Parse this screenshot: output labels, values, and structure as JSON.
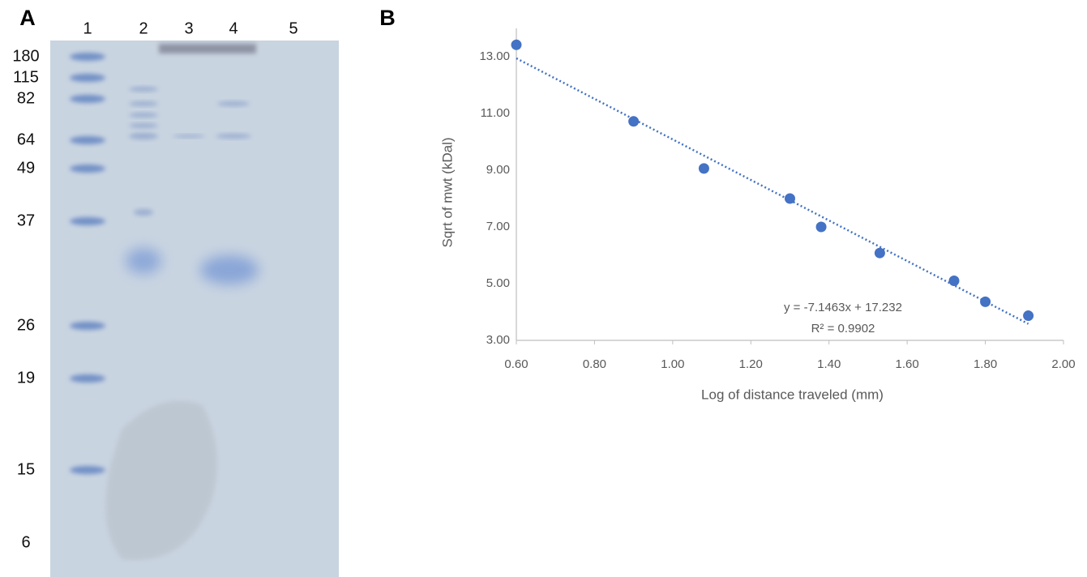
{
  "gel": {
    "panel_label": "A",
    "lanes": [
      "1",
      "2",
      "3",
      "4",
      "5"
    ],
    "markers": [
      "180",
      "115",
      "82",
      "64",
      "49",
      "37",
      "26",
      "19",
      "15",
      "6"
    ]
  },
  "chart_data": {
    "type": "scatter",
    "panel_label": "B",
    "x_label": "Log of distance traveled (mm)",
    "y_label": "Sqrt of mwt (kDal)",
    "x": [
      0.6,
      0.9,
      1.08,
      1.3,
      1.38,
      1.53,
      1.72,
      1.8,
      1.91
    ],
    "values": [
      13.42,
      10.72,
      9.06,
      8.0,
      7.0,
      6.08,
      5.1,
      4.36,
      3.87
    ],
    "color": "#4472c4",
    "trendline": {
      "slope": -7.1463,
      "intercept": 17.232,
      "x": [
        0.6,
        1.91
      ],
      "color": "#4472c4"
    },
    "annotations": [
      "y = -7.1463x + 17.232",
      "R² = 0.9902"
    ],
    "xlim": [
      0.6,
      2.0
    ],
    "xticks": [
      {
        "value": 0.6,
        "label": "0.60"
      },
      {
        "value": 0.8,
        "label": "0.80"
      },
      {
        "value": 1.0,
        "label": "1.00"
      },
      {
        "value": 1.2,
        "label": "1.20"
      },
      {
        "value": 1.4,
        "label": "1.40"
      },
      {
        "value": 1.6,
        "label": "1.60"
      },
      {
        "value": 1.8,
        "label": "1.80"
      },
      {
        "value": 2.0,
        "label": "2.00"
      }
    ],
    "ylim": [
      3,
      14
    ],
    "yticks": [
      {
        "value": 3,
        "label": "3.00"
      },
      {
        "value": 5,
        "label": "5.00"
      },
      {
        "value": 7,
        "label": "7.00"
      },
      {
        "value": 9,
        "label": "9.00"
      },
      {
        "value": 11,
        "label": "11.00"
      },
      {
        "value": 13,
        "label": "13.00"
      }
    ],
    "grid": false
  }
}
